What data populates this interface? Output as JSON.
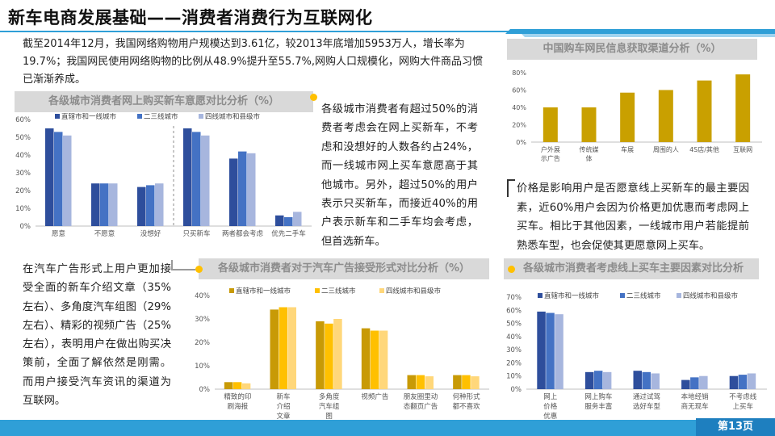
{
  "title": "新车电商发展基础——消费者消费行为互联网化",
  "intro_text": "截至2014年12月，我国网络购物用户规模达到3.61亿，较2013年底增加5953万人，增长率为19.7%；我国网民使用网络购物的比例从48.9%提升至55.7%,网购人口规模化，网购大件商品习惯已渐渐养成。",
  "mid_text": "各级城市消费者有超过50%的消费者考虑会在网上买新车，不考虑和没想好的人数各约占24%，而一线城市网上买车意愿高于其他城市。另外，超过50%的用户表示只买新车，而接近40%的用户表示新车和二手车均会考虑，但首选新车。",
  "right_text": "价格是影响用户是否愿意线上买新车的最主要因素，近60%用户会因为价格更加优惠而考虑网上买车。相比于其他因素，一线城市用户若能提前熟悉车型，也会促使其更愿意网上买车。",
  "left_text": "在汽车广告形式上用户更加接受全面的新车介绍文章（35%左右）、多角度汽车组图（29%左右）、精彩的视频广告（25%左右），表明用户在做出购买决策前，全面了解依然是刚需。而用户接受汽车资讯的渠道为互联网。",
  "section_titles": {
    "chart1": "各级城市消费者网上购买新车意愿对比分析（%）",
    "chart2": "中国购车网民信息获取渠道分析（%）",
    "chart3": "各级城市消费者对于汽车广告接受形式对比分析（%）",
    "chart4": "各级城市消费者考虑线上买车主要因素对比分析"
  },
  "page_number": "第13页",
  "colors": {
    "accent_blue": "#2f9fd7",
    "dark_blue": "#2e4e9c",
    "mid_blue": "#4472c4",
    "light_blue": "#a7b6de",
    "dark_gold": "#c89a06",
    "gold": "#ffc000",
    "light_gold": "#ffd77a",
    "bar_gold": "#c9a000"
  },
  "chart_data": [
    {
      "id": "chart1",
      "type": "bar",
      "categories": [
        "愿意",
        "不愿意",
        "没想好",
        "只买新车",
        "两者都会考虑",
        "优先二手车"
      ],
      "series": [
        {
          "name": "直辖市和一线城市",
          "values": [
            55,
            24,
            22,
            55,
            38,
            6
          ]
        },
        {
          "name": "二三线城市",
          "values": [
            53,
            24,
            23,
            53,
            42,
            5
          ]
        },
        {
          "name": "四线城市和县级市",
          "values": [
            51,
            24,
            24,
            51,
            41,
            8
          ]
        }
      ],
      "ylim": [
        0,
        60
      ],
      "yticks": [
        "0%",
        "10%",
        "20%",
        "30%",
        "40%",
        "50%",
        "60%"
      ],
      "grid": false,
      "legend": "top"
    },
    {
      "id": "chart2",
      "type": "bar",
      "categories": [
        "户外展示广告",
        "传统媒体",
        "车展",
        "周围的人",
        "4S店/其他",
        "互联网"
      ],
      "values": [
        40,
        40,
        57,
        60,
        71,
        78
      ],
      "ylim": [
        0,
        80
      ],
      "yticks": [
        "0%",
        "20%",
        "40%",
        "60%",
        "80%"
      ],
      "grid": false
    },
    {
      "id": "chart3",
      "type": "bar",
      "categories": [
        "精致的印刷海报",
        "新车介绍文章",
        "多角度汽车组图",
        "视频广告",
        "朋友圈里动态翻页广告",
        "何种形式都不喜欢"
      ],
      "series": [
        {
          "name": "直辖市和一线城市",
          "values": [
            3,
            34,
            29,
            26,
            6,
            6
          ]
        },
        {
          "name": "二三线城市",
          "values": [
            3,
            35,
            28,
            25,
            6,
            6
          ]
        },
        {
          "name": "四线城市和县级市",
          "values": [
            2.5,
            35,
            30,
            25,
            5.5,
            5.5
          ]
        }
      ],
      "ylim": [
        0,
        40
      ],
      "yticks": [
        "0%",
        "10%",
        "20%",
        "30%",
        "40%"
      ],
      "grid": false,
      "legend": "top"
    },
    {
      "id": "chart4",
      "type": "bar",
      "categories": [
        "网上价格优惠",
        "网上购车服务丰富",
        "通过试驾选好车型",
        "本地经销商无现车",
        "不考虑线上买车"
      ],
      "series": [
        {
          "name": "直辖市和一线城市",
          "values": [
            59,
            13,
            14,
            7,
            10
          ]
        },
        {
          "name": "二三线城市",
          "values": [
            58,
            14,
            13,
            9,
            11
          ]
        },
        {
          "name": "四线城市和县级市",
          "values": [
            57,
            13,
            12,
            10,
            12
          ]
        }
      ],
      "ylim": [
        0,
        70
      ],
      "yticks": [
        "0%",
        "10%",
        "20%",
        "30%",
        "40%",
        "50%",
        "60%",
        "70%"
      ],
      "grid": false,
      "legend": "top"
    }
  ]
}
